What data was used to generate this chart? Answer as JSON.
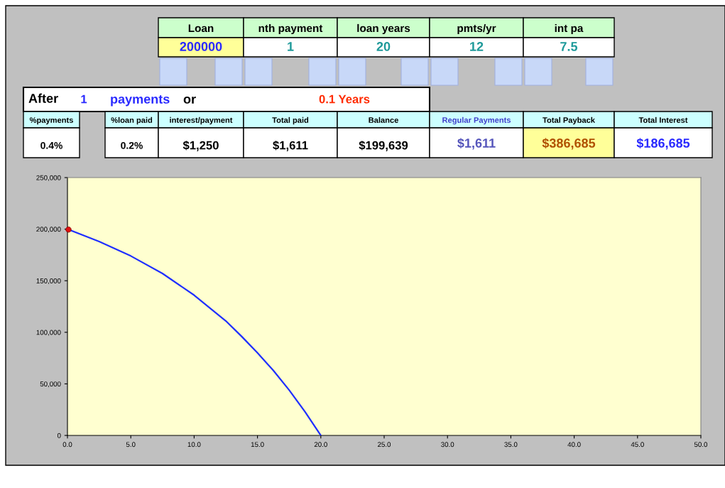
{
  "chart_data": [
    {
      "type": "other",
      "annotations": [
        "Loan",
        "nth payment",
        "loan years",
        "pmts/yr",
        "int pa",
        "200000",
        "1",
        "20",
        "12",
        "7.5",
        "After",
        "1",
        "payments",
        "or",
        "0.1 Years",
        "%payments",
        "%loan paid",
        "interest/payment",
        "Total paid",
        "Balance",
        "Regular Payments",
        "Total Payback",
        "Total Interest",
        "0.4%",
        "0.2%",
        "$1,250",
        "$1,611",
        "$199,639",
        "$1,611",
        "$386,685",
        "$186,685"
      ]
    },
    {
      "type": "line",
      "xlim": [
        0,
        50
      ],
      "xticks": [
        {
          "value": 0,
          "label": "0.0"
        },
        {
          "value": 5,
          "label": "5.0"
        },
        {
          "value": 10,
          "label": "10.0"
        },
        {
          "value": 15,
          "label": "15.0"
        },
        {
          "value": 20,
          "label": "20.0"
        },
        {
          "value": 25,
          "label": "25.0"
        },
        {
          "value": 30,
          "label": "30.0"
        },
        {
          "value": 35,
          "label": "35.0"
        },
        {
          "value": 40,
          "label": "40.0"
        },
        {
          "value": 45,
          "label": "45.0"
        },
        {
          "value": 50,
          "label": "50.0"
        }
      ],
      "ylim": [
        0,
        250000
      ],
      "yticks": [
        0,
        {
          "value": 50000,
          "label": "50,000"
        },
        {
          "value": 100000,
          "label": "100,000"
        },
        {
          "value": 150000,
          "label": "150,000"
        },
        {
          "value": 200000,
          "label": "200,000"
        },
        {
          "value": 250000,
          "label": "250,000"
        }
      ],
      "grid": false,
      "series": [
        {
          "type": "line",
          "color": "#1f2fff",
          "x": [
            0,
            2.5,
            5,
            7.5,
            10,
            12.5,
            13.75,
            15,
            16.25,
            17.5,
            18.75,
            20
          ],
          "values": [
            200000,
            188000,
            174000,
            157000,
            136000,
            111000,
            96000,
            80000,
            63000,
            44000,
            23000,
            0
          ]
        },
        {
          "type": "scatter",
          "color": "#e01010",
          "marker": "circle",
          "x": [
            0.08
          ],
          "values": [
            199600
          ]
        }
      ]
    }
  ]
}
